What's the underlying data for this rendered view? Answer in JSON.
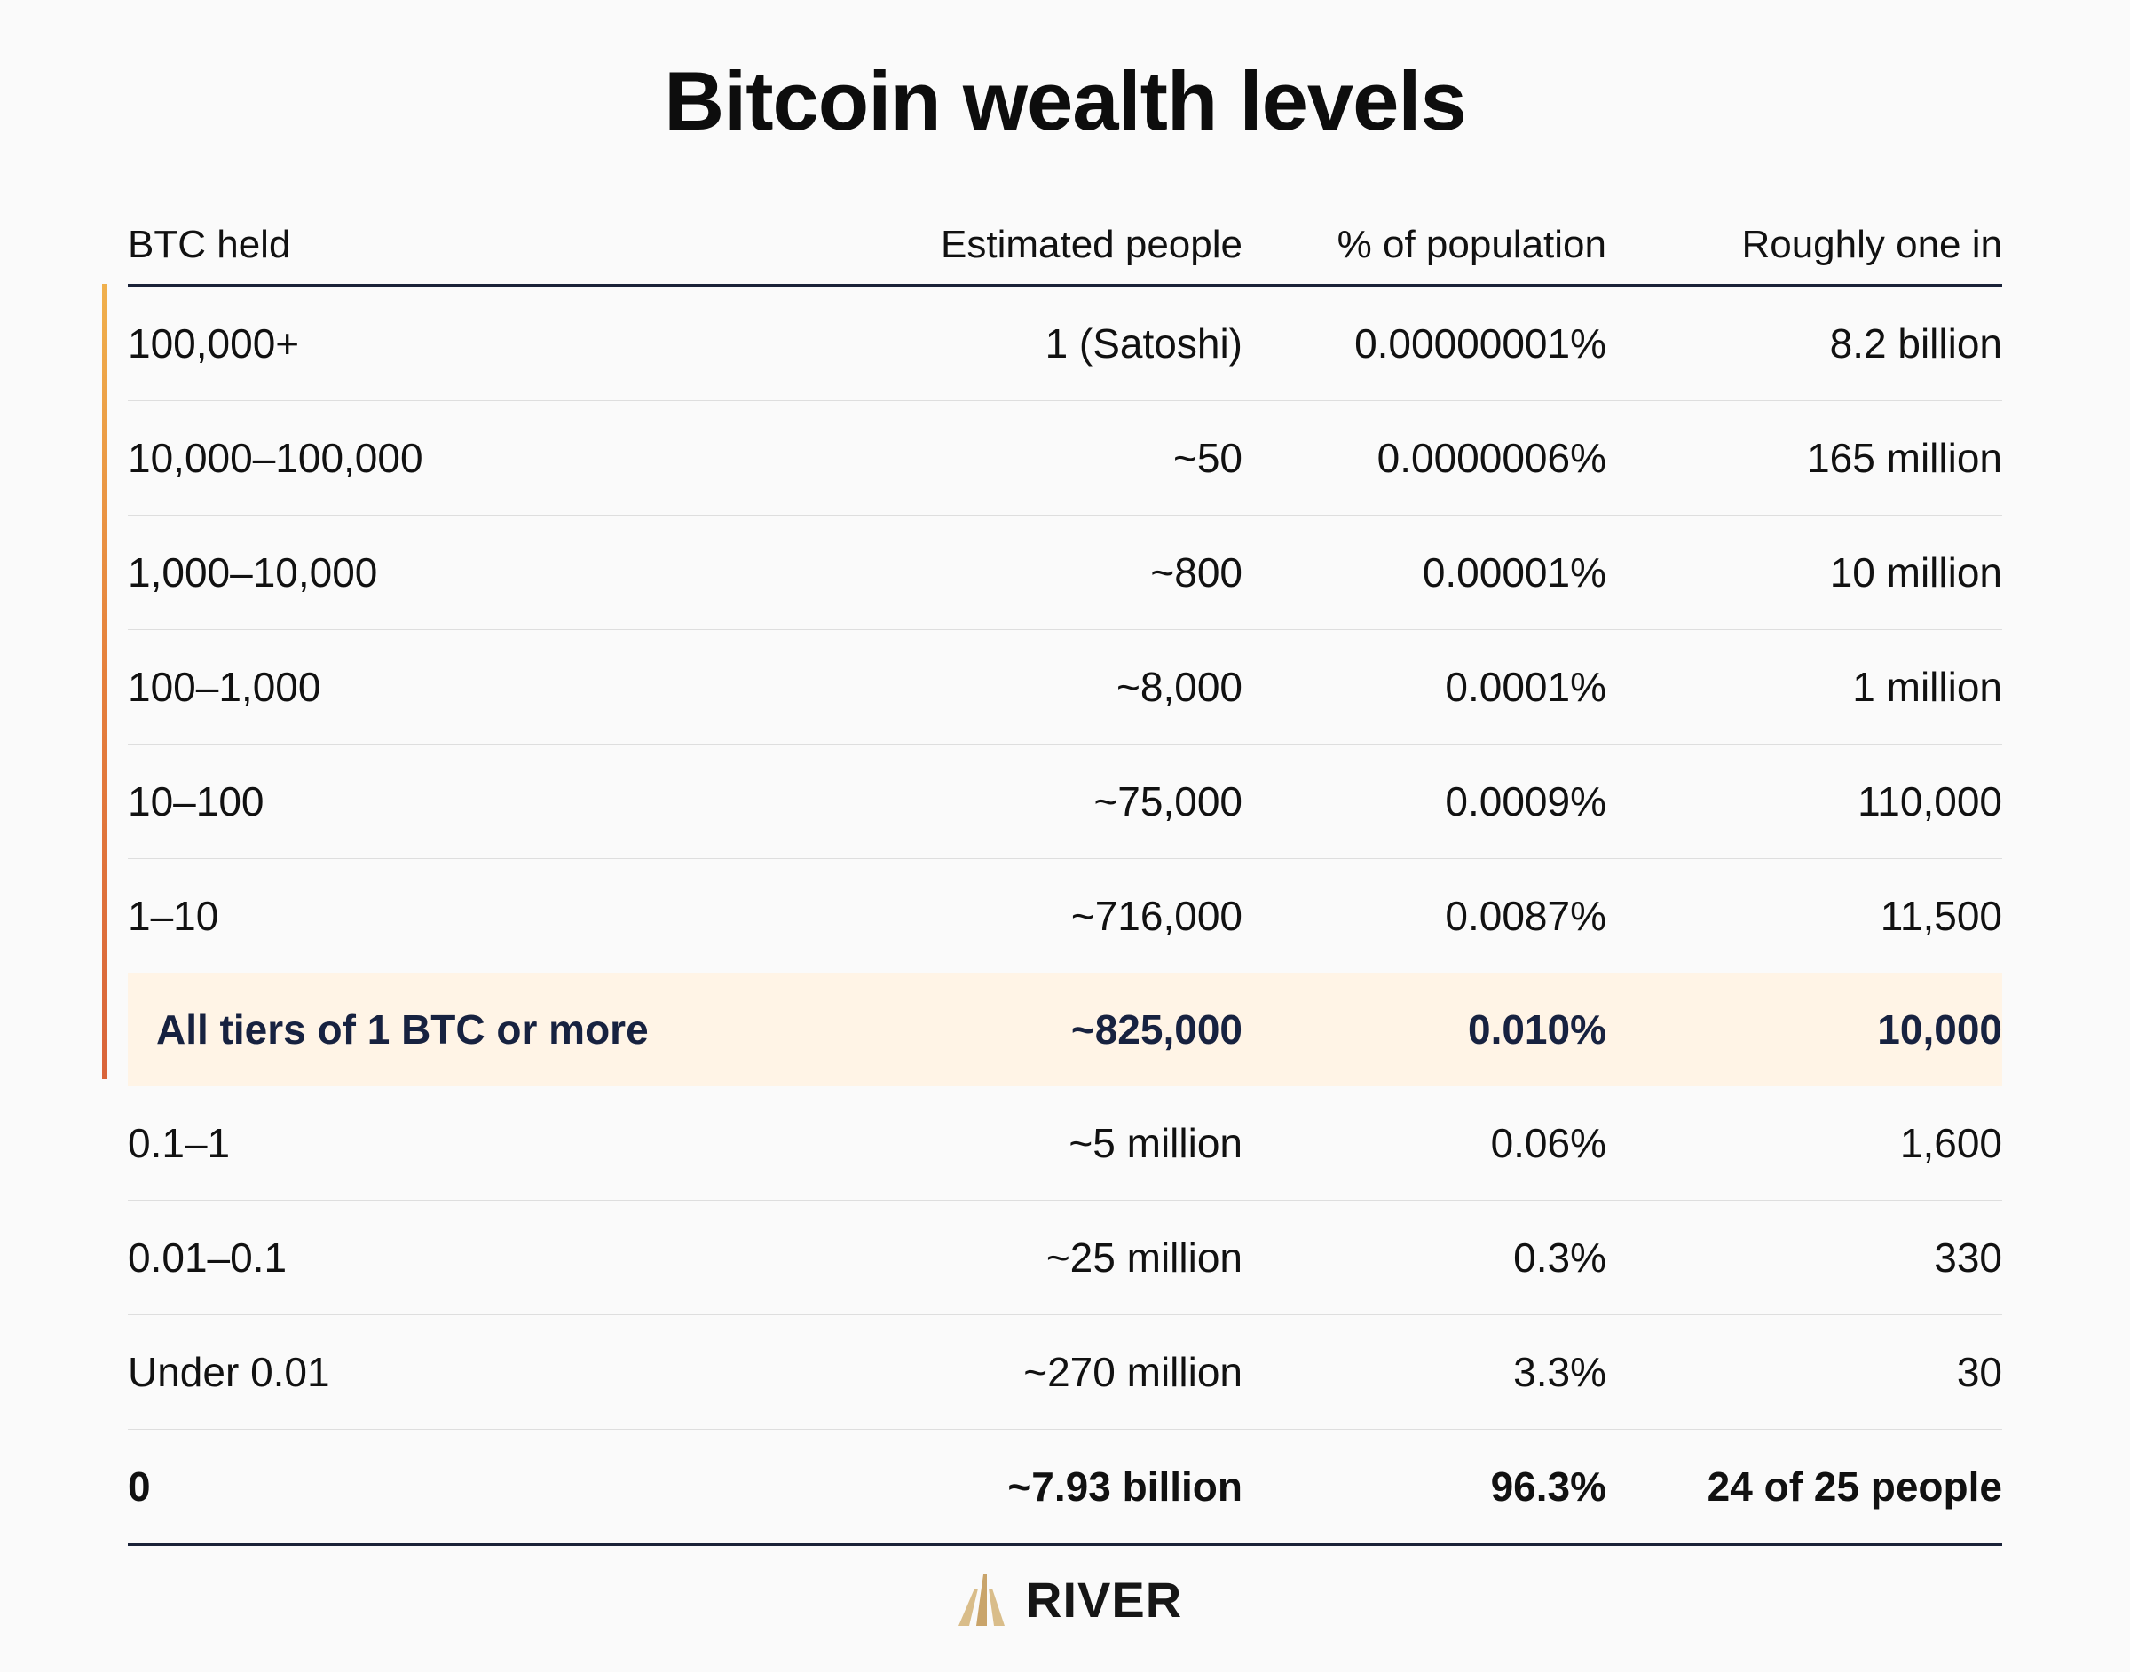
{
  "chart_data": {
    "type": "table",
    "title": "Bitcoin wealth levels",
    "columns": [
      "BTC held",
      "Estimated people",
      "% of population",
      "Roughly one in"
    ],
    "rows": [
      {
        "btc": "100,000+",
        "people": "1 (Satoshi)",
        "pct": "0.00000001%",
        "one_in": "8.2 billion",
        "style": "normal"
      },
      {
        "btc": "10,000–100,000",
        "people": "~50",
        "pct": "0.0000006%",
        "one_in": "165 million",
        "style": "normal"
      },
      {
        "btc": "1,000–10,000",
        "people": "~800",
        "pct": "0.00001%",
        "one_in": "10 million",
        "style": "normal"
      },
      {
        "btc": "100–1,000",
        "people": "~8,000",
        "pct": "0.0001%",
        "one_in": "1 million",
        "style": "normal"
      },
      {
        "btc": "10–100",
        "people": "~75,000",
        "pct": "0.0009%",
        "one_in": "110,000",
        "style": "normal"
      },
      {
        "btc": "1–10",
        "people": "~716,000",
        "pct": "0.0087%",
        "one_in": "11,500",
        "style": "normal"
      },
      {
        "btc": "All tiers of 1 BTC or more",
        "people": "~825,000",
        "pct": "0.010%",
        "one_in": "10,000",
        "style": "highlight"
      },
      {
        "btc": "0.1–1",
        "people": "~5 million",
        "pct": "0.06%",
        "one_in": "1,600",
        "style": "normal"
      },
      {
        "btc": "0.01–0.1",
        "people": "~25 million",
        "pct": "0.3%",
        "one_in": "330",
        "style": "normal"
      },
      {
        "btc": "Under 0.01",
        "people": "~270 million",
        "pct": "3.3%",
        "one_in": "30",
        "style": "normal"
      },
      {
        "btc": "0",
        "people": "~7.93 billion",
        "pct": "96.3%",
        "one_in": "24 of 25 people",
        "style": "bold"
      }
    ]
  },
  "branding": {
    "logo_text": "RIVER",
    "logo_icon": "river-logo-icon",
    "logo_color": "#c9a46a"
  },
  "colors": {
    "accent_top": "#f0b04c",
    "accent_bottom": "#d9643a",
    "highlight_bg": "#fff4e6",
    "highlight_text": "#172240"
  }
}
